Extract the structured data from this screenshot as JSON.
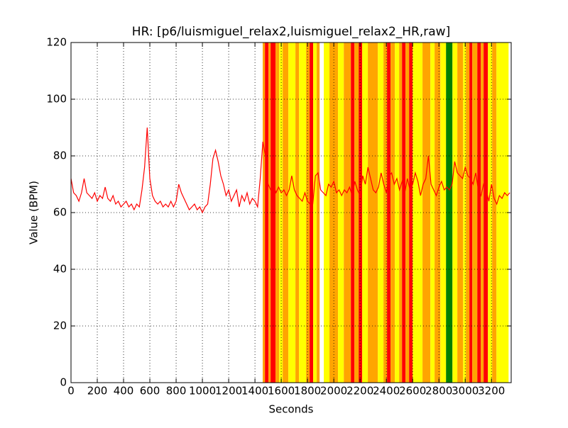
{
  "chart_data": {
    "type": "line",
    "title": "HR: [p6/luismiguel_relax2,luismiguel_relax2_HR,raw]",
    "x_label": "Seconds",
    "y_label": "Value (BPM)",
    "xlim": [
      0,
      3350
    ],
    "ylim": [
      0,
      120
    ],
    "xticks": [
      0,
      200,
      400,
      600,
      800,
      1000,
      1200,
      1400,
      1600,
      1800,
      2000,
      2200,
      2400,
      2600,
      2800,
      3000,
      3200
    ],
    "yticks": [
      0,
      20,
      40,
      60,
      80,
      100,
      120
    ],
    "grid": true,
    "bands": [
      {
        "start": 1459,
        "end": 1476,
        "color": "#ffa500"
      },
      {
        "start": 1476,
        "end": 1503,
        "color": "#ff0000"
      },
      {
        "start": 1503,
        "end": 1519,
        "color": "#ffa500"
      },
      {
        "start": 1519,
        "end": 1557,
        "color": "#ff0000"
      },
      {
        "start": 1557,
        "end": 1584,
        "color": "#ffa500"
      },
      {
        "start": 1584,
        "end": 1611,
        "color": "#ffff00"
      },
      {
        "start": 1611,
        "end": 1654,
        "color": "#ffa500"
      },
      {
        "start": 1654,
        "end": 1708,
        "color": "#ffff00"
      },
      {
        "start": 1708,
        "end": 1735,
        "color": "#ffa500"
      },
      {
        "start": 1735,
        "end": 1789,
        "color": "#ffff00"
      },
      {
        "start": 1789,
        "end": 1816,
        "color": "#ffa500"
      },
      {
        "start": 1816,
        "end": 1843,
        "color": "#ff0000"
      },
      {
        "start": 1843,
        "end": 1870,
        "color": "#ffff00"
      },
      {
        "start": 1870,
        "end": 1892,
        "color": "#ffa500"
      },
      {
        "start": 1924,
        "end": 1967,
        "color": "#ffff00"
      },
      {
        "start": 1967,
        "end": 2032,
        "color": "#ffa500"
      },
      {
        "start": 2032,
        "end": 2076,
        "color": "#ffff00"
      },
      {
        "start": 2076,
        "end": 2130,
        "color": "#ffa500"
      },
      {
        "start": 2130,
        "end": 2157,
        "color": "#ff0000"
      },
      {
        "start": 2157,
        "end": 2189,
        "color": "#ffa500"
      },
      {
        "start": 2189,
        "end": 2216,
        "color": "#ff0000"
      },
      {
        "start": 2216,
        "end": 2259,
        "color": "#ffff00"
      },
      {
        "start": 2259,
        "end": 2335,
        "color": "#ffa500"
      },
      {
        "start": 2335,
        "end": 2378,
        "color": "#ffff00"
      },
      {
        "start": 2378,
        "end": 2405,
        "color": "#ffa500"
      },
      {
        "start": 2405,
        "end": 2432,
        "color": "#ff0000"
      },
      {
        "start": 2432,
        "end": 2465,
        "color": "#ffa500"
      },
      {
        "start": 2465,
        "end": 2497,
        "color": "#ffff00"
      },
      {
        "start": 2497,
        "end": 2519,
        "color": "#ffa500"
      },
      {
        "start": 2519,
        "end": 2546,
        "color": "#ff0000"
      },
      {
        "start": 2546,
        "end": 2573,
        "color": "#ffa500"
      },
      {
        "start": 2573,
        "end": 2600,
        "color": "#ff0000"
      },
      {
        "start": 2600,
        "end": 2675,
        "color": "#ffff00"
      },
      {
        "start": 2675,
        "end": 2735,
        "color": "#ffa500"
      },
      {
        "start": 2735,
        "end": 2767,
        "color": "#ffff00"
      },
      {
        "start": 2767,
        "end": 2811,
        "color": "#ffa500"
      },
      {
        "start": 2811,
        "end": 2854,
        "color": "#ffff00"
      },
      {
        "start": 2854,
        "end": 2903,
        "color": "#008000"
      },
      {
        "start": 2903,
        "end": 2940,
        "color": "#ffff00"
      },
      {
        "start": 2940,
        "end": 2984,
        "color": "#ffa500"
      },
      {
        "start": 2984,
        "end": 3005,
        "color": "#ffff00"
      },
      {
        "start": 3005,
        "end": 3032,
        "color": "#ffa500"
      },
      {
        "start": 3032,
        "end": 3054,
        "color": "#ff0000"
      },
      {
        "start": 3054,
        "end": 3092,
        "color": "#ffa500"
      },
      {
        "start": 3092,
        "end": 3119,
        "color": "#ff0000"
      },
      {
        "start": 3119,
        "end": 3140,
        "color": "#ffa500"
      },
      {
        "start": 3140,
        "end": 3173,
        "color": "#ff0000"
      },
      {
        "start": 3173,
        "end": 3205,
        "color": "#ffff00"
      },
      {
        "start": 3205,
        "end": 3238,
        "color": "#ffa500"
      },
      {
        "start": 3238,
        "end": 3330,
        "color": "#ffff00"
      }
    ],
    "x": [
      0,
      20,
      40,
      60,
      80,
      100,
      120,
      140,
      160,
      180,
      200,
      220,
      240,
      260,
      280,
      300,
      320,
      340,
      360,
      380,
      400,
      420,
      440,
      460,
      480,
      500,
      520,
      540,
      560,
      580,
      600,
      620,
      640,
      660,
      680,
      700,
      720,
      740,
      760,
      780,
      800,
      820,
      840,
      860,
      880,
      900,
      920,
      940,
      960,
      980,
      1000,
      1020,
      1040,
      1060,
      1080,
      1100,
      1120,
      1140,
      1160,
      1180,
      1200,
      1220,
      1240,
      1260,
      1280,
      1300,
      1320,
      1340,
      1360,
      1380,
      1400,
      1420,
      1440,
      1460,
      1480,
      1500,
      1520,
      1540,
      1560,
      1580,
      1600,
      1620,
      1640,
      1660,
      1680,
      1700,
      1720,
      1740,
      1760,
      1780,
      1800,
      1820,
      1840,
      1860,
      1880,
      1900,
      1920,
      1940,
      1960,
      1980,
      2000,
      2020,
      2040,
      2060,
      2080,
      2100,
      2120,
      2140,
      2160,
      2180,
      2200,
      2220,
      2240,
      2260,
      2280,
      2300,
      2320,
      2340,
      2360,
      2380,
      2400,
      2420,
      2440,
      2460,
      2480,
      2500,
      2520,
      2540,
      2560,
      2580,
      2600,
      2620,
      2640,
      2660,
      2680,
      2700,
      2720,
      2740,
      2760,
      2780,
      2800,
      2820,
      2840,
      2860,
      2880,
      2900,
      2920,
      2940,
      2960,
      2980,
      3000,
      3020,
      3040,
      3060,
      3080,
      3100,
      3120,
      3140,
      3160,
      3180,
      3200,
      3220,
      3240,
      3260,
      3280,
      3300,
      3320,
      3340
    ],
    "series": [
      {
        "color": "#ff0000",
        "values": [
          72,
          67,
          66,
          64,
          67,
          72,
          67,
          66,
          65,
          67,
          64,
          66,
          65,
          69,
          65,
          64,
          66,
          63,
          64,
          62,
          63,
          64,
          62,
          63,
          61,
          63,
          62,
          68,
          76,
          90,
          72,
          66,
          64,
          63,
          64,
          62,
          63,
          62,
          64,
          62,
          64,
          70,
          67,
          65,
          63,
          61,
          62,
          63,
          61,
          62,
          60,
          62,
          63,
          70,
          79,
          82,
          78,
          73,
          70,
          66,
          68,
          64,
          66,
          68,
          62,
          66,
          64,
          67,
          63,
          65,
          64,
          62,
          72,
          85,
          80,
          70,
          68,
          70,
          67,
          69,
          67,
          68,
          66,
          68,
          73,
          68,
          66,
          65,
          64,
          67,
          64,
          63,
          63,
          73,
          74,
          68,
          67,
          66,
          70,
          69,
          71,
          67,
          68,
          66,
          68,
          67,
          69,
          66,
          71,
          68,
          66,
          73,
          70,
          76,
          72,
          68,
          67,
          69,
          74,
          70,
          67,
          73,
          74,
          70,
          72,
          68,
          71,
          67,
          72,
          68,
          70,
          74,
          71,
          66,
          70,
          72,
          80,
          70,
          68,
          66,
          69,
          71,
          68,
          69,
          68,
          70,
          78,
          74,
          73,
          72,
          76,
          73,
          72,
          70,
          74,
          68,
          66,
          70,
          68,
          64,
          70,
          65,
          63,
          66,
          65,
          67,
          66,
          67
        ]
      }
    ]
  }
}
